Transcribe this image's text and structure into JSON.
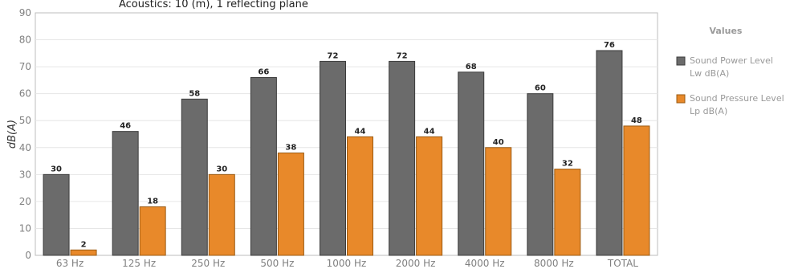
{
  "chart_data": {
    "type": "bar",
    "title": "Acoustics: 10 (m), 1 reflecting plane",
    "ylabel": "dB(A)",
    "xlabel": "",
    "ylim": [
      0,
      90
    ],
    "yticks": [
      0,
      10,
      20,
      30,
      40,
      50,
      60,
      70,
      80,
      90
    ],
    "grid": true,
    "categories": [
      "63 Hz",
      "125 Hz",
      "250 Hz",
      "500 Hz",
      "1000 Hz",
      "2000 Hz",
      "4000 Hz",
      "8000 Hz",
      "TOTAL"
    ],
    "series": [
      {
        "name": "Sound Power Level Lw dB(A)",
        "legend_lines": [
          "Sound Power Level",
          "Lw dB(A)"
        ],
        "color": "#6b6b6b",
        "values": [
          30,
          46,
          58,
          66,
          72,
          72,
          68,
          60,
          76
        ]
      },
      {
        "name": "Sound Pressure Level Lp dB(A)",
        "legend_lines": [
          "Sound Pressure Level",
          "Lp dB(A)"
        ],
        "color": "#e8892a",
        "values": [
          2,
          18,
          30,
          38,
          44,
          44,
          40,
          32,
          48
        ]
      }
    ],
    "legend": {
      "title": "Values",
      "position": "right"
    }
  }
}
